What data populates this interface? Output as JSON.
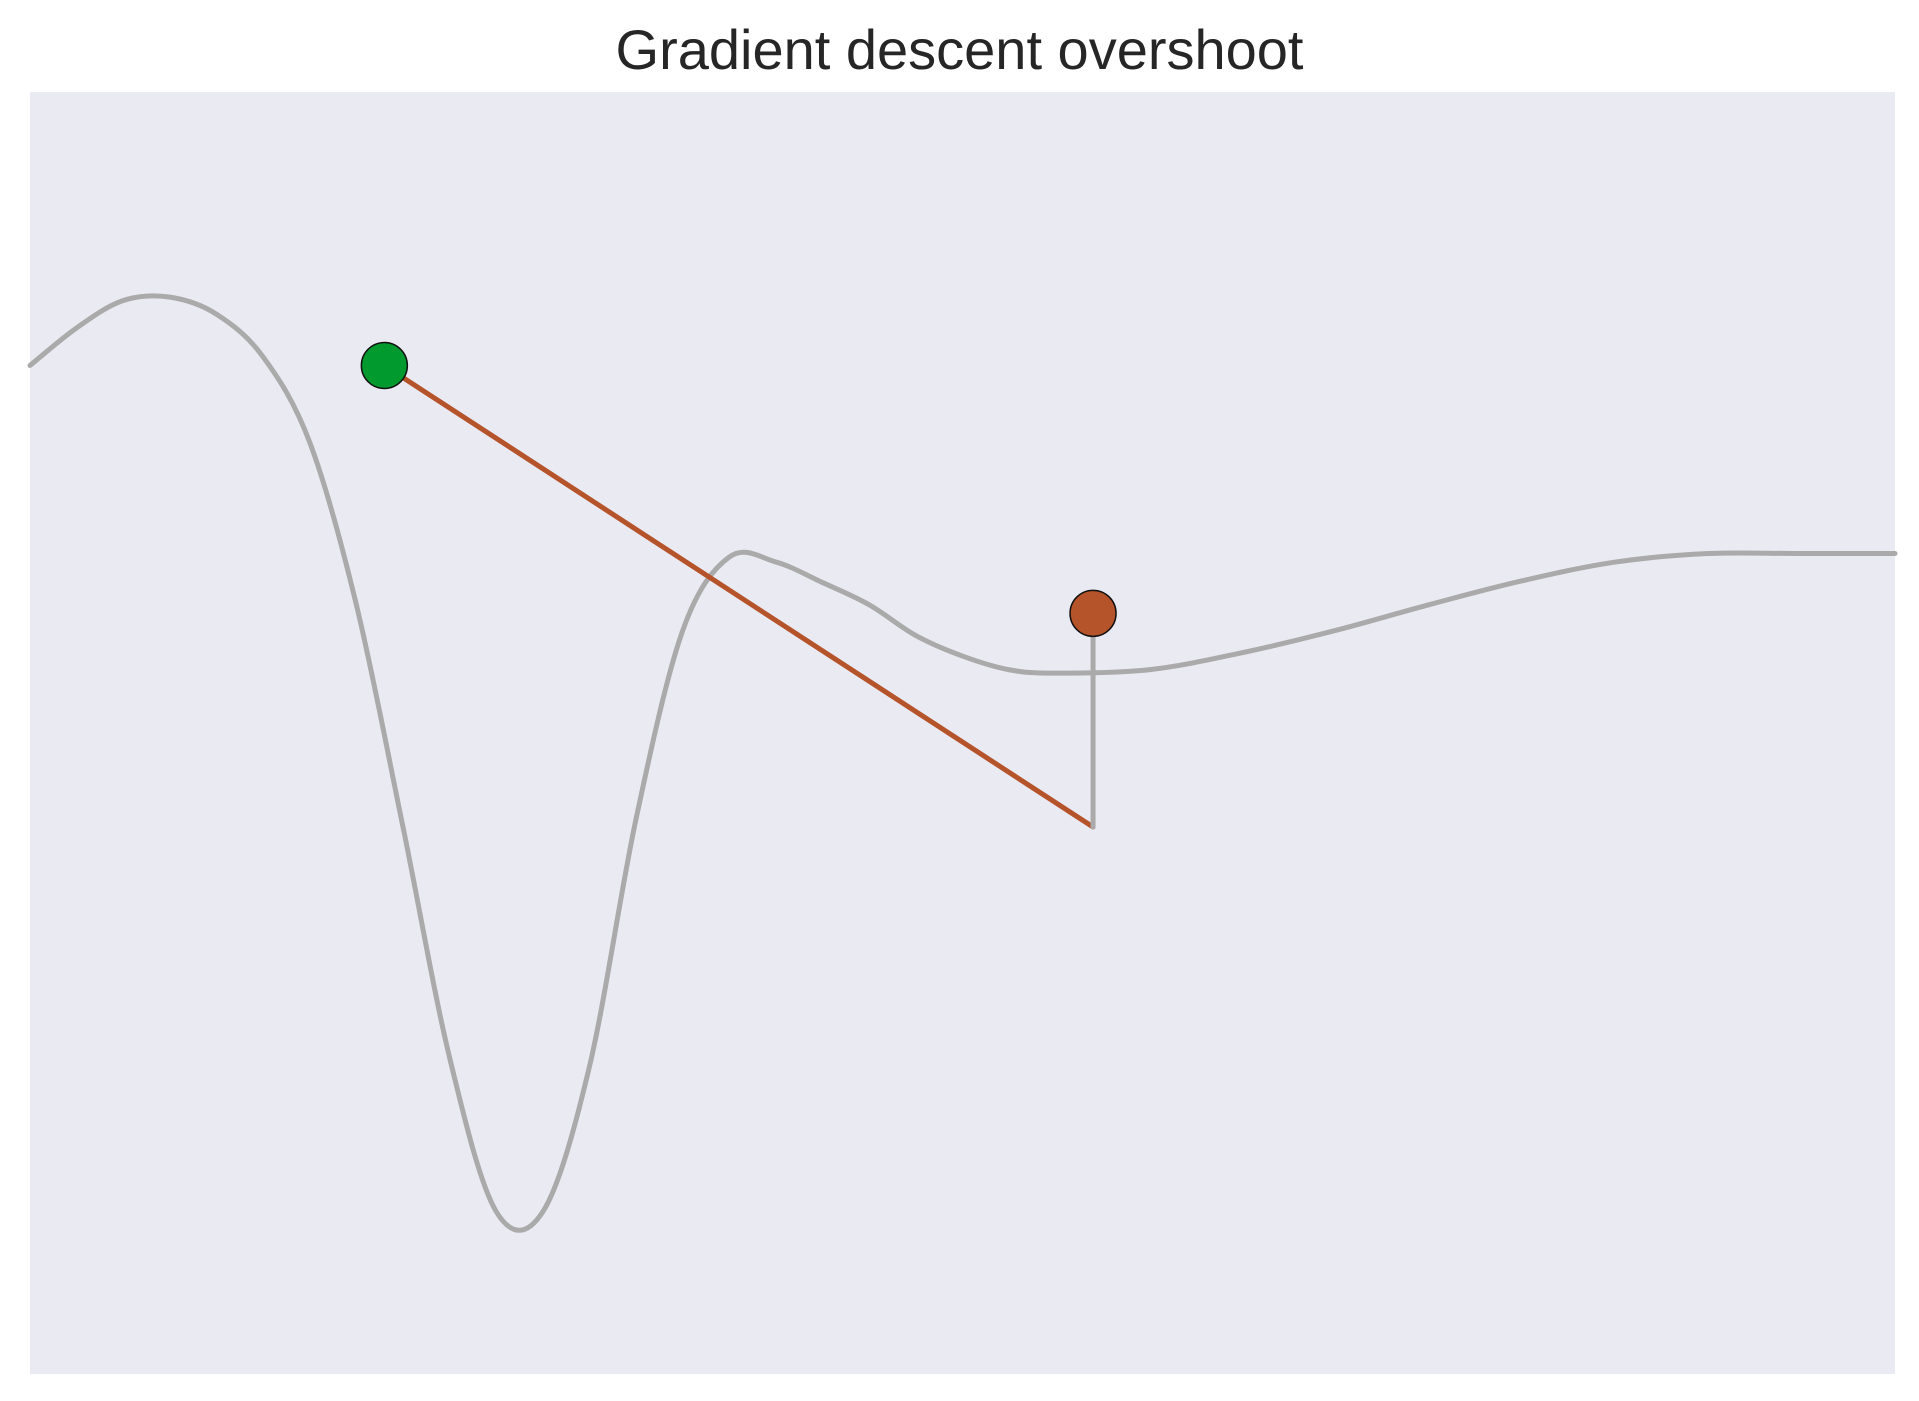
{
  "chart_data": {
    "type": "line",
    "title": "Gradient descent overshoot",
    "xlabel": "",
    "ylabel": "",
    "grid": false,
    "xlim": [
      0,
      10
    ],
    "ylim": [
      -4.5,
      3.0
    ],
    "series": [
      {
        "role": "loss-curve",
        "color": "#aaaaaa",
        "x": [
          0.0,
          0.25,
          0.5,
          0.75,
          1.0,
          1.25,
          1.5,
          1.75,
          2.0,
          2.25,
          2.5,
          2.75,
          3.0,
          3.25,
          3.5,
          3.75,
          4.0,
          4.25,
          4.5,
          4.75,
          5.0,
          5.25,
          5.5,
          6.0,
          6.5,
          7.0,
          7.5,
          8.0,
          8.5,
          9.0,
          9.5,
          10.0
        ],
        "y": [
          1.4,
          1.62,
          1.78,
          1.8,
          1.7,
          1.45,
          0.95,
          0.0,
          -1.3,
          -2.65,
          -3.55,
          -3.55,
          -2.7,
          -1.25,
          -0.15,
          0.28,
          0.25,
          0.13,
          0.0,
          -0.18,
          -0.3,
          -0.38,
          -0.4,
          -0.38,
          -0.28,
          -0.15,
          0.0,
          0.14,
          0.25,
          0.3,
          0.3,
          0.3
        ]
      },
      {
        "role": "gradient-step",
        "color": "#b5532a",
        "x": [
          1.9,
          5.7
        ],
        "y": [
          1.4,
          -1.3
        ]
      },
      {
        "role": "drop-to-curve",
        "color": "#aaaaaa",
        "x": [
          5.7,
          5.7
        ],
        "y": [
          -1.3,
          -0.05
        ]
      }
    ],
    "points": [
      {
        "role": "start",
        "x": 1.9,
        "y": 1.4,
        "color": "#009a2e"
      },
      {
        "role": "end",
        "x": 5.7,
        "y": -0.05,
        "color": "#b5532a"
      }
    ],
    "background": "#eaeaf2"
  }
}
